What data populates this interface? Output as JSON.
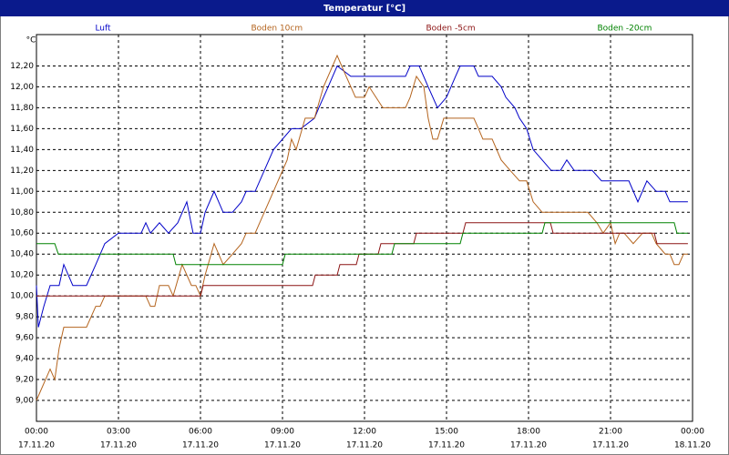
{
  "chart_data": {
    "type": "line",
    "title": "Temperatur [°C]",
    "y_unit": "°C",
    "xlim": [
      0,
      24
    ],
    "ylim": [
      8.8,
      12.5
    ],
    "xticks": [
      {
        "value": 0,
        "label": "00:00"
      },
      {
        "value": 3,
        "label": "03:00"
      },
      {
        "value": 6,
        "label": "06:00"
      },
      {
        "value": 9,
        "label": "09:00"
      },
      {
        "value": 12,
        "label": "12:00"
      },
      {
        "value": 15,
        "label": "15:00"
      },
      {
        "value": 18,
        "label": "18:00"
      },
      {
        "value": 21,
        "label": "21:00"
      },
      {
        "value": 24,
        "label": "00:00"
      }
    ],
    "xtick_dates": [
      "17.11.20",
      "17.11.20",
      "17.11.20",
      "17.11.20",
      "17.11.20",
      "17.11.20",
      "17.11.20",
      "17.11.20",
      "18.11.20"
    ],
    "yticks": [
      {
        "value": 9.0,
        "label": "9,00"
      },
      {
        "value": 9.2,
        "label": "9,20"
      },
      {
        "value": 9.4,
        "label": "9,40"
      },
      {
        "value": 9.6,
        "label": "9,60"
      },
      {
        "value": 9.8,
        "label": "9,80"
      },
      {
        "value": 10.0,
        "label": "10,00"
      },
      {
        "value": 10.2,
        "label": "10,20"
      },
      {
        "value": 10.4,
        "label": "10,40"
      },
      {
        "value": 10.6,
        "label": "10,60"
      },
      {
        "value": 10.8,
        "label": "10,80"
      },
      {
        "value": 11.0,
        "label": "11,00"
      },
      {
        "value": 11.2,
        "label": "11,20"
      },
      {
        "value": 11.4,
        "label": "11,40"
      },
      {
        "value": 11.6,
        "label": "11,60"
      },
      {
        "value": 11.8,
        "label": "11,80"
      },
      {
        "value": 12.0,
        "label": "12,00"
      },
      {
        "value": 12.2,
        "label": "12,20"
      }
    ],
    "grid": true,
    "series": [
      {
        "name": "Luft",
        "color": "#0000c8",
        "x": [
          0,
          0.07,
          0.27,
          0.5,
          0.83,
          1.0,
          1.33,
          1.83,
          2.17,
          2.5,
          3.0,
          3.83,
          4.0,
          4.17,
          4.5,
          4.83,
          5.17,
          5.5,
          5.73,
          6.0,
          6.17,
          6.5,
          6.83,
          7.17,
          7.5,
          7.67,
          8.0,
          8.67,
          9.0,
          9.33,
          9.67,
          10.17,
          10.33,
          10.67,
          11.0,
          11.5,
          13.5,
          13.67,
          14.0,
          14.33,
          14.67,
          15.0,
          15.33,
          15.5,
          16.0,
          16.17,
          16.67,
          17.0,
          17.17,
          17.5,
          17.67,
          17.93,
          18.17,
          18.5,
          18.83,
          19.17,
          19.4,
          19.67,
          20.33,
          20.67,
          21.67,
          22.0,
          22.33,
          22.67,
          23.0,
          23.17,
          23.83
        ],
        "values": [
          10.1,
          9.7,
          9.9,
          10.1,
          10.1,
          10.3,
          10.1,
          10.1,
          10.3,
          10.5,
          10.6,
          10.6,
          10.7,
          10.6,
          10.7,
          10.6,
          10.7,
          10.9,
          10.6,
          10.6,
          10.8,
          11.0,
          10.8,
          10.8,
          10.9,
          11.0,
          11.0,
          11.4,
          11.5,
          11.6,
          11.6,
          11.7,
          11.8,
          12.0,
          12.2,
          12.1,
          12.1,
          12.2,
          12.2,
          12.0,
          11.8,
          11.9,
          12.1,
          12.2,
          12.2,
          12.1,
          12.1,
          12.0,
          11.9,
          11.8,
          11.7,
          11.6,
          11.4,
          11.3,
          11.2,
          11.2,
          11.3,
          11.2,
          11.2,
          11.1,
          11.1,
          10.9,
          11.1,
          11.0,
          11.0,
          10.9,
          10.9
        ]
      },
      {
        "name": "Boden 10cm",
        "color": "#b4641e",
        "x": [
          0,
          0.5,
          0.67,
          0.83,
          1.0,
          1.83,
          2.17,
          2.33,
          2.5,
          4.0,
          4.17,
          4.33,
          4.5,
          4.83,
          5.0,
          5.33,
          5.67,
          5.83,
          6.0,
          6.17,
          6.5,
          6.83,
          7.17,
          7.5,
          7.67,
          8.0,
          8.67,
          9.17,
          9.33,
          9.5,
          9.83,
          10.17,
          10.5,
          11.0,
          11.33,
          11.67,
          12.0,
          12.17,
          12.67,
          13.5,
          13.67,
          13.9,
          14.17,
          14.33,
          14.5,
          14.67,
          14.9,
          16.0,
          16.17,
          16.33,
          16.67,
          17.0,
          17.33,
          17.67,
          17.93,
          18.17,
          18.5,
          20.17,
          20.5,
          20.73,
          21.0,
          21.17,
          21.33,
          21.5,
          21.83,
          22.17,
          22.5,
          22.67,
          23.0,
          23.17,
          23.33,
          23.5,
          23.67,
          23.83
        ],
        "values": [
          9.0,
          9.3,
          9.2,
          9.5,
          9.7,
          9.7,
          9.9,
          9.9,
          10.0,
          10.0,
          9.9,
          9.9,
          10.1,
          10.1,
          10.0,
          10.3,
          10.1,
          10.1,
          10.0,
          10.2,
          10.5,
          10.3,
          10.4,
          10.5,
          10.6,
          10.6,
          11.0,
          11.3,
          11.5,
          11.4,
          11.7,
          11.7,
          12.0,
          12.3,
          12.1,
          11.9,
          11.9,
          12.0,
          11.8,
          11.8,
          11.9,
          12.1,
          12.0,
          11.7,
          11.5,
          11.5,
          11.7,
          11.7,
          11.6,
          11.5,
          11.5,
          11.3,
          11.2,
          11.1,
          11.1,
          10.9,
          10.8,
          10.8,
          10.7,
          10.6,
          10.7,
          10.5,
          10.6,
          10.6,
          10.5,
          10.6,
          10.6,
          10.5,
          10.4,
          10.4,
          10.3,
          10.3,
          10.4,
          10.4
        ]
      },
      {
        "name": "Boden -5cm",
        "color": "#8c1414",
        "x": [
          0,
          6.0,
          6.1,
          10.1,
          10.2,
          11.0,
          11.1,
          11.7,
          11.8,
          12.5,
          12.6,
          13.8,
          13.9,
          15.6,
          15.7,
          18.8,
          18.9,
          22.6,
          22.7,
          23.83
        ],
        "values": [
          10.0,
          10.0,
          10.1,
          10.1,
          10.2,
          10.2,
          10.3,
          10.3,
          10.4,
          10.4,
          10.5,
          10.5,
          10.6,
          10.6,
          10.7,
          10.7,
          10.6,
          10.6,
          10.5,
          10.5
        ]
      },
      {
        "name": "Boden -20cm",
        "color": "#008200",
        "x": [
          0,
          0.67,
          0.8,
          5.0,
          5.1,
          9.0,
          9.1,
          13.0,
          13.1,
          15.5,
          15.6,
          18.5,
          18.6,
          23.33,
          23.43,
          23.83
        ],
        "values": [
          10.5,
          10.5,
          10.4,
          10.4,
          10.3,
          10.3,
          10.4,
          10.4,
          10.5,
          10.5,
          10.6,
          10.6,
          10.7,
          10.7,
          10.6,
          10.6
        ]
      }
    ]
  }
}
